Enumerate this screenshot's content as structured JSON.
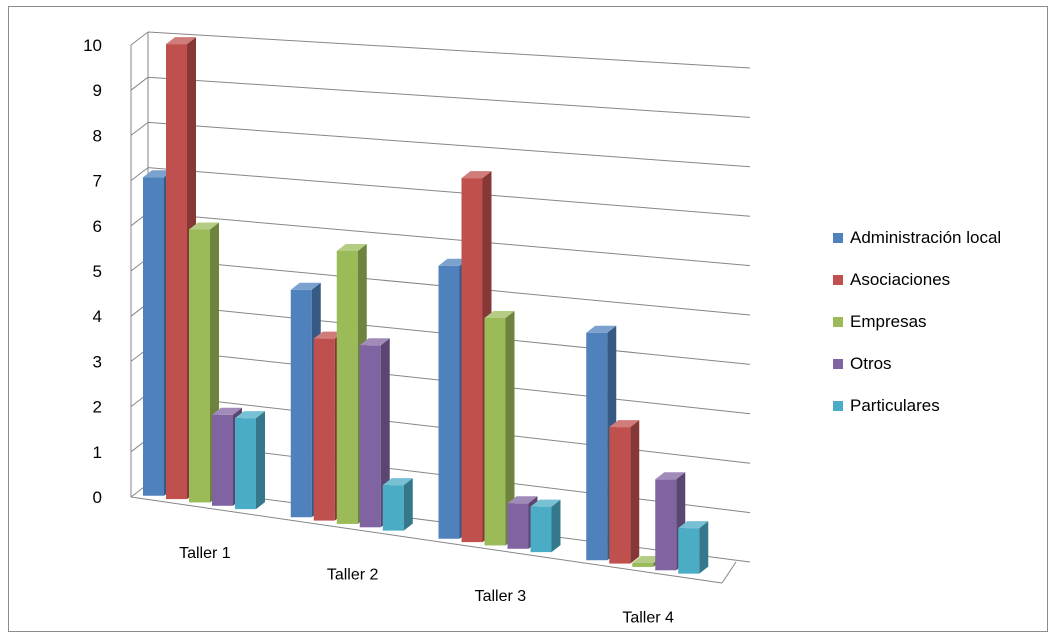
{
  "chart_data": {
    "type": "bar",
    "title": "",
    "xlabel": "",
    "ylabel": "",
    "ylim": [
      0,
      10
    ],
    "yticks": [
      0,
      1,
      2,
      3,
      4,
      5,
      6,
      7,
      8,
      9,
      10
    ],
    "categories": [
      "Taller 1",
      "Taller 2",
      "Taller 3",
      "Taller 4"
    ],
    "series": [
      {
        "name": "Administración local",
        "color": "#4f81bd",
        "values": [
          7,
          5,
          6,
          5
        ]
      },
      {
        "name": "Asociaciones",
        "color": "#c0504d",
        "values": [
          10,
          4,
          8,
          3
        ]
      },
      {
        "name": "Empresas",
        "color": "#9bbb59",
        "values": [
          6,
          6,
          5,
          0
        ]
      },
      {
        "name": "Otros",
        "color": "#8064a2",
        "values": [
          2,
          4,
          1,
          2
        ]
      },
      {
        "name": "Particulares",
        "color": "#4bacc6",
        "values": [
          2,
          1,
          1,
          1
        ]
      }
    ],
    "grid": true,
    "legend_position": "right"
  }
}
